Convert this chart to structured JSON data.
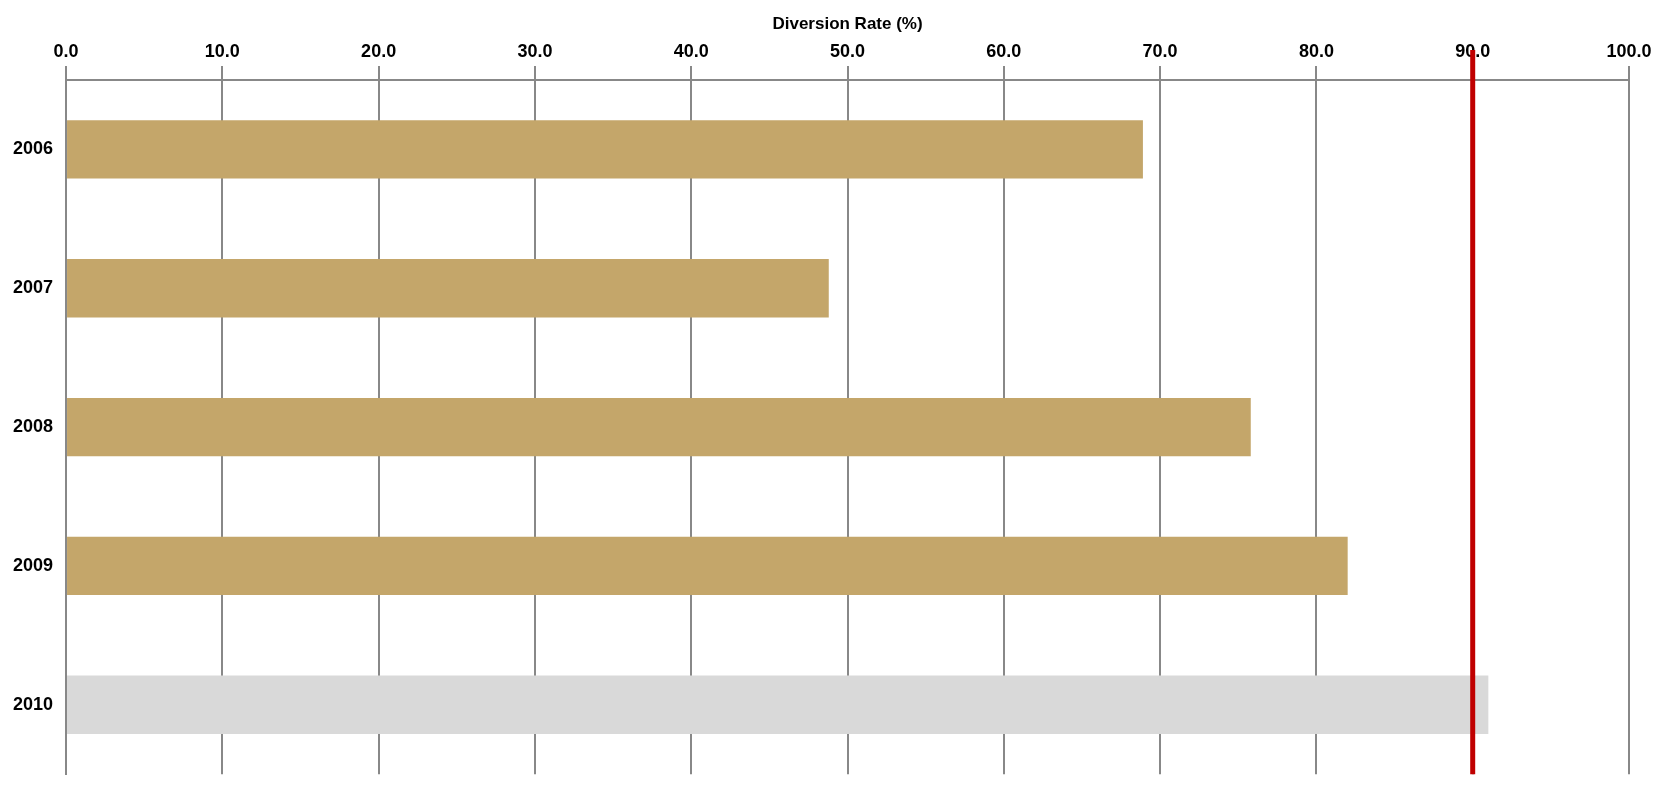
{
  "chart_data": {
    "type": "bar",
    "orientation": "horizontal",
    "xlabel": "Diversion Rate (%)",
    "categories": [
      "2006",
      "2007",
      "2008",
      "2009",
      "2010"
    ],
    "values": [
      68.9,
      48.8,
      75.8,
      82.0,
      91.0
    ],
    "colors": [
      "#c4a66a",
      "#c4a66a",
      "#c4a66a",
      "#c4a66a",
      "#d9d9d9"
    ],
    "xlim": [
      0,
      100
    ],
    "xticks": [
      {
        "value": 0,
        "label": "0.0"
      },
      {
        "value": 10,
        "label": "10.0"
      },
      {
        "value": 20,
        "label": "20.0"
      },
      {
        "value": 30,
        "label": "30.0"
      },
      {
        "value": 40,
        "label": "40.0"
      },
      {
        "value": 50,
        "label": "50.0"
      },
      {
        "value": 60,
        "label": "60.0"
      },
      {
        "value": 70,
        "label": "70.0"
      },
      {
        "value": 80,
        "label": "80.0"
      },
      {
        "value": 90,
        "label": "90.0"
      },
      {
        "value": 100,
        "label": "100.0"
      }
    ],
    "ref_lines": [
      {
        "axis": "x",
        "value": 90,
        "color": "#c00000"
      }
    ],
    "grid": "x"
  }
}
